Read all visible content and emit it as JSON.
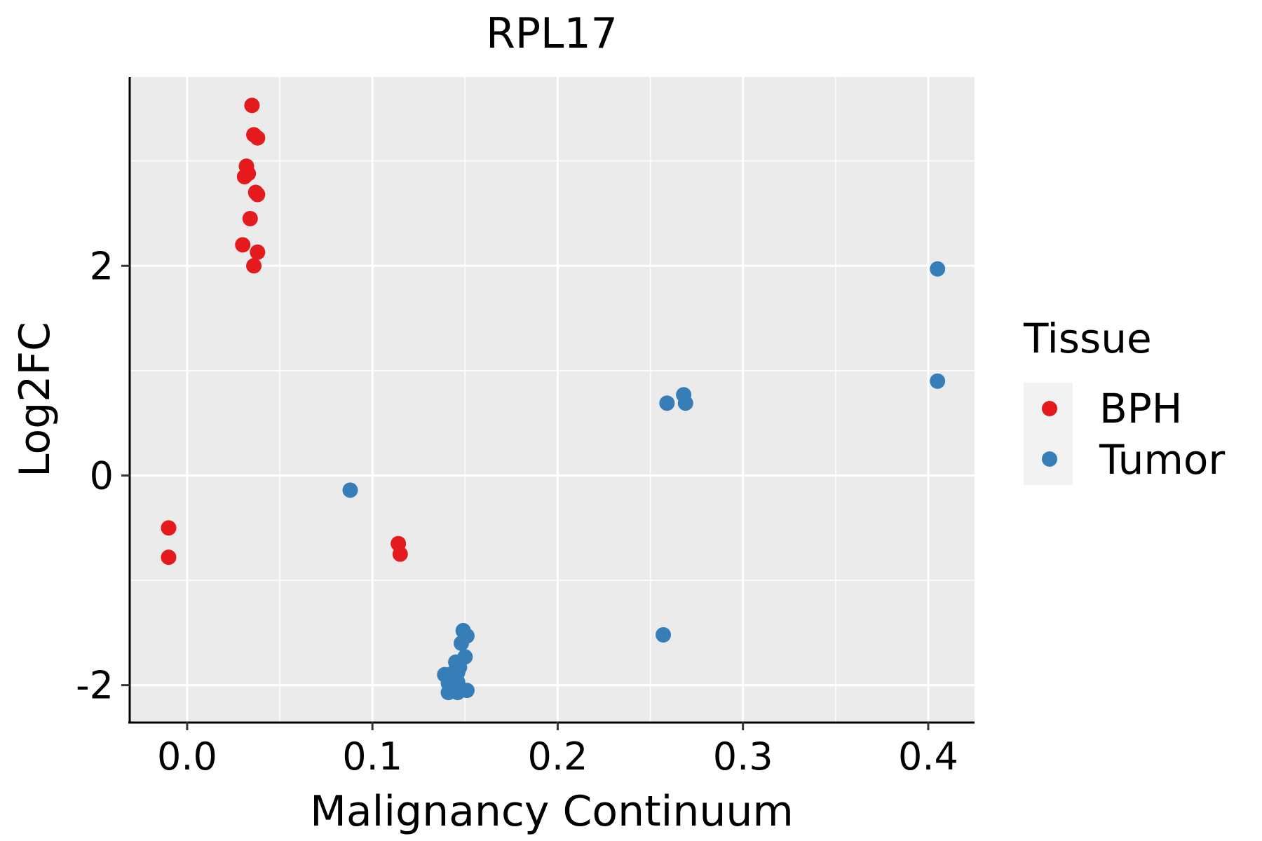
{
  "chart_data": {
    "type": "scatter",
    "title": "RPL17",
    "xlabel": "Malignancy Continuum",
    "ylabel": "Log2FC",
    "xlim": [
      -0.031,
      0.425
    ],
    "ylim": [
      -2.35,
      3.8
    ],
    "x_ticks": [
      {
        "value": 0.0,
        "label": "0.0"
      },
      {
        "value": 0.1,
        "label": "0.1"
      },
      {
        "value": 0.2,
        "label": "0.2"
      },
      {
        "value": 0.3,
        "label": "0.3"
      },
      {
        "value": 0.4,
        "label": "0.4"
      }
    ],
    "y_ticks": [
      {
        "value": -2,
        "label": "-2"
      },
      {
        "value": 0,
        "label": "0"
      },
      {
        "value": 2,
        "label": "2"
      }
    ],
    "x_minor_grid": [
      0.05,
      0.15,
      0.25,
      0.35
    ],
    "y_minor_grid": [
      -1,
      1,
      3
    ],
    "grid": true,
    "panel_background": "#EBEBEB",
    "legend": {
      "title": "Tissue",
      "position": "right",
      "entries": [
        {
          "label": "BPH",
          "color": "#E41A1C"
        },
        {
          "label": "Tumor",
          "color": "#377EB8"
        }
      ]
    },
    "series": [
      {
        "name": "BPH",
        "color": "#E41A1C",
        "points": [
          {
            "x": 0.035,
            "y": 3.53
          },
          {
            "x": 0.036,
            "y": 3.25
          },
          {
            "x": 0.038,
            "y": 3.22
          },
          {
            "x": 0.032,
            "y": 2.95
          },
          {
            "x": 0.033,
            "y": 2.88
          },
          {
            "x": 0.031,
            "y": 2.85
          },
          {
            "x": 0.037,
            "y": 2.7
          },
          {
            "x": 0.038,
            "y": 2.68
          },
          {
            "x": 0.034,
            "y": 2.45
          },
          {
            "x": 0.03,
            "y": 2.2
          },
          {
            "x": 0.038,
            "y": 2.13
          },
          {
            "x": 0.036,
            "y": 2.0
          },
          {
            "x": -0.01,
            "y": -0.5
          },
          {
            "x": -0.01,
            "y": -0.78
          },
          {
            "x": 0.114,
            "y": -0.65
          },
          {
            "x": 0.115,
            "y": -0.75
          }
        ]
      },
      {
        "name": "Tumor",
        "color": "#377EB8",
        "points": [
          {
            "x": 0.405,
            "y": 1.97
          },
          {
            "x": 0.405,
            "y": 0.9
          },
          {
            "x": 0.268,
            "y": 0.77
          },
          {
            "x": 0.259,
            "y": 0.69
          },
          {
            "x": 0.269,
            "y": 0.69
          },
          {
            "x": 0.088,
            "y": -0.14
          },
          {
            "x": 0.257,
            "y": -1.52
          },
          {
            "x": 0.149,
            "y": -1.48
          },
          {
            "x": 0.151,
            "y": -1.53
          },
          {
            "x": 0.148,
            "y": -1.6
          },
          {
            "x": 0.15,
            "y": -1.73
          },
          {
            "x": 0.145,
            "y": -1.78
          },
          {
            "x": 0.147,
            "y": -1.83
          },
          {
            "x": 0.146,
            "y": -1.88
          },
          {
            "x": 0.143,
            "y": -1.89
          },
          {
            "x": 0.139,
            "y": -1.9
          },
          {
            "x": 0.144,
            "y": -1.93
          },
          {
            "x": 0.146,
            "y": -1.97
          },
          {
            "x": 0.141,
            "y": -1.98
          },
          {
            "x": 0.143,
            "y": -2.02
          },
          {
            "x": 0.151,
            "y": -2.05
          },
          {
            "x": 0.141,
            "y": -2.07
          },
          {
            "x": 0.146,
            "y": -2.07
          }
        ]
      }
    ]
  }
}
